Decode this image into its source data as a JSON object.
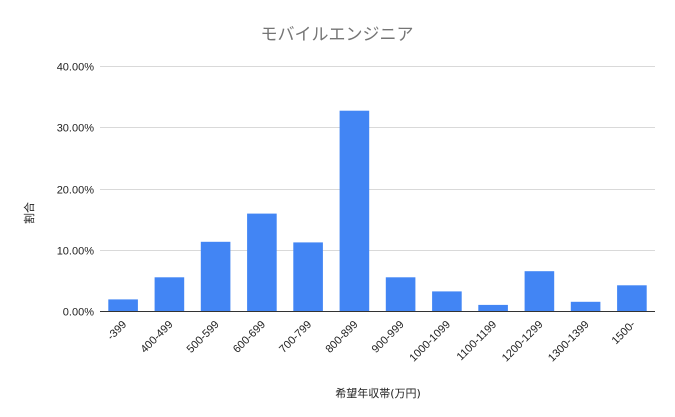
{
  "chart_data": {
    "type": "bar",
    "title": "モバイルエンジニア",
    "xlabel": "希望年収帯(万円)",
    "ylabel": "割合",
    "categories": [
      "-399",
      "400-499",
      "500-599",
      "600-699",
      "700-799",
      "800-899",
      "900-999",
      "1000-1099",
      "1100-1199",
      "1200-1299",
      "1300-1399",
      "1500-"
    ],
    "values": [
      1.9,
      5.5,
      11.3,
      15.9,
      11.2,
      32.7,
      5.5,
      3.2,
      1.0,
      6.5,
      1.5,
      4.2
    ],
    "ylim": [
      0,
      40
    ],
    "yticks": [
      "0.00%",
      "10.00%",
      "20.00%",
      "30.00%",
      "40.00%"
    ],
    "grid": true,
    "bar_color": "#4285f4",
    "legend": "none"
  }
}
